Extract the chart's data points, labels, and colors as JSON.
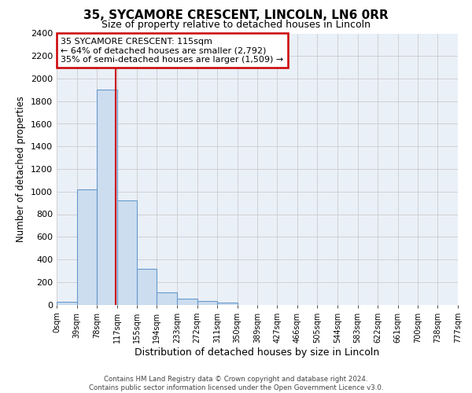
{
  "title": "35, SYCAMORE CRESCENT, LINCOLN, LN6 0RR",
  "subtitle": "Size of property relative to detached houses in Lincoln",
  "xlabel": "Distribution of detached houses by size in Lincoln",
  "ylabel": "Number of detached properties",
  "bin_edges": [
    0,
    39,
    78,
    117,
    155,
    194,
    233,
    272,
    311,
    350,
    389,
    427,
    466,
    505,
    544,
    583,
    622,
    661,
    700,
    738,
    777
  ],
  "bar_heights": [
    25,
    1020,
    1900,
    920,
    320,
    110,
    50,
    30,
    20,
    0,
    0,
    0,
    0,
    0,
    0,
    0,
    0,
    0,
    0,
    0
  ],
  "bar_color": "#ccddef",
  "bar_edge_color": "#6699cc",
  "property_line_x": 115,
  "property_line_color": "#cc0000",
  "ylim": [
    0,
    2400
  ],
  "yticks": [
    0,
    200,
    400,
    600,
    800,
    1000,
    1200,
    1400,
    1600,
    1800,
    2000,
    2200,
    2400
  ],
  "xtick_labels": [
    "0sqm",
    "39sqm",
    "78sqm",
    "117sqm",
    "155sqm",
    "194sqm",
    "233sqm",
    "272sqm",
    "311sqm",
    "350sqm",
    "389sqm",
    "427sqm",
    "466sqm",
    "505sqm",
    "544sqm",
    "583sqm",
    "622sqm",
    "661sqm",
    "700sqm",
    "738sqm",
    "777sqm"
  ],
  "annotation_line1": "35 SYCAMORE CRESCENT: 115sqm",
  "annotation_line2": "← 64% of detached houses are smaller (2,792)",
  "annotation_line3": "35% of semi-detached houses are larger (1,509) →",
  "footer_line1": "Contains HM Land Registry data © Crown copyright and database right 2024.",
  "footer_line2": "Contains public sector information licensed under the Open Government Licence v3.0.",
  "background_color": "#ffffff",
  "grid_color": "#cccccc",
  "plot_bg_color": "#eaf0f8"
}
